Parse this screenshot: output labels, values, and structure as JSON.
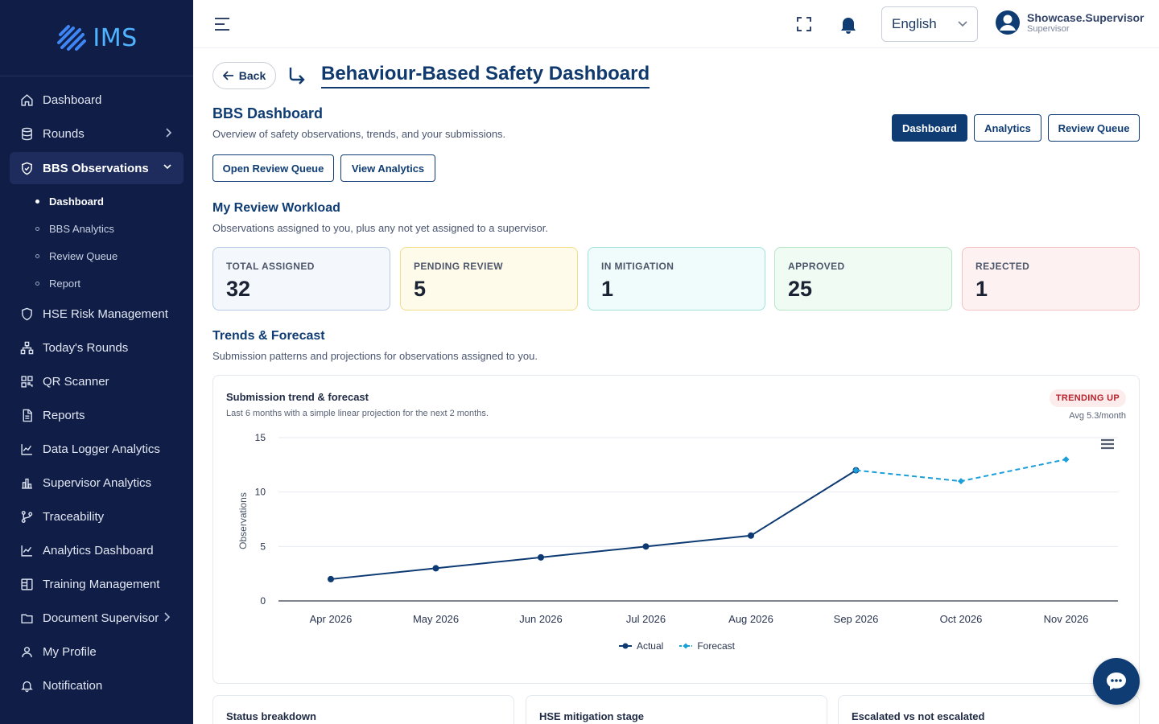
{
  "app": {
    "logo_text": "IMS"
  },
  "sidebar": {
    "items": [
      {
        "label": "Dashboard",
        "icon": "home-icon"
      },
      {
        "label": "Rounds",
        "icon": "database-icon"
      },
      {
        "label": "BBS Observations",
        "icon": "shield-check-icon"
      },
      {
        "label": "HSE Risk Management",
        "icon": "shield-icon"
      },
      {
        "label": "Today's Rounds",
        "icon": "hierarchy-icon"
      },
      {
        "label": "QR Scanner",
        "icon": "qr-icon"
      },
      {
        "label": "Reports",
        "icon": "document-icon"
      },
      {
        "label": "Data Logger Analytics",
        "icon": "line-chart-icon"
      },
      {
        "label": "Supervisor Analytics",
        "icon": "bar-chart-icon"
      },
      {
        "label": "Traceability",
        "icon": "branch-icon"
      },
      {
        "label": "Analytics Dashboard",
        "icon": "line-chart-icon"
      },
      {
        "label": "Training Management",
        "icon": "book-icon"
      },
      {
        "label": "Document Supervisor",
        "icon": "folder-icon"
      },
      {
        "label": "My Profile",
        "icon": "user-icon"
      },
      {
        "label": "Notification",
        "icon": "bell-icon"
      }
    ],
    "sub_items": [
      "Dashboard",
      "BBS Analytics",
      "Review Queue",
      "Report"
    ]
  },
  "header": {
    "language": "English",
    "user_name": "Showcase.Supervisor",
    "user_role": "Supervisor"
  },
  "page": {
    "back_label": "Back",
    "title": "Behaviour-Based Safety Dashboard",
    "section_title": "BBS Dashboard",
    "section_desc": "Overview of safety observations, trends, and your submissions.",
    "tabs": [
      "Dashboard",
      "Analytics",
      "Review Queue"
    ],
    "open_review_queue": "Open Review Queue",
    "view_analytics": "View Analytics"
  },
  "workload": {
    "title": "My Review Workload",
    "desc": "Observations assigned to you, plus any not yet assigned to a supervisor.",
    "stats": [
      {
        "label": "TOTAL ASSIGNED",
        "value": "32",
        "bg": "#f4f8fd",
        "border": "#b9cbe3"
      },
      {
        "label": "PENDING REVIEW",
        "value": "5",
        "bg": "#fffbea",
        "border": "#f2dd8a"
      },
      {
        "label": "IN MITIGATION",
        "value": "1",
        "bg": "#effcfb",
        "border": "#9fe3dc"
      },
      {
        "label": "APPROVED",
        "value": "25",
        "bg": "#f0fbf4",
        "border": "#b5e6c6"
      },
      {
        "label": "REJECTED",
        "value": "1",
        "bg": "#fdf1f1",
        "border": "#f3c2c2"
      }
    ]
  },
  "trends": {
    "title": "Trends & Forecast",
    "desc": "Submission patterns and projections for observations assigned to you."
  },
  "chart_data": {
    "type": "line",
    "title": "Submission trend & forecast",
    "subtitle": "Last 6 months with a simple linear projection for the next 2 months.",
    "badge": "TRENDING UP",
    "avg_text": "Avg 5.3/month",
    "ylabel": "Observations",
    "ylim": [
      0,
      15
    ],
    "yticks": [
      0,
      5,
      10,
      15
    ],
    "categories": [
      "Apr 2026",
      "May 2026",
      "Jun 2026",
      "Jul 2026",
      "Aug 2026",
      "Sep 2026",
      "Oct 2026",
      "Nov 2026"
    ],
    "series": [
      {
        "name": "Actual",
        "color": "#0d3a73",
        "values": [
          2,
          3,
          4,
          5,
          6,
          12,
          null,
          null
        ]
      },
      {
        "name": "Forecast",
        "color": "#1a9fdb",
        "values": [
          null,
          null,
          null,
          null,
          null,
          12,
          11,
          13
        ]
      }
    ]
  },
  "bottom_cards": [
    "Status breakdown",
    "HSE mitigation stage",
    "Escalated vs not escalated"
  ]
}
